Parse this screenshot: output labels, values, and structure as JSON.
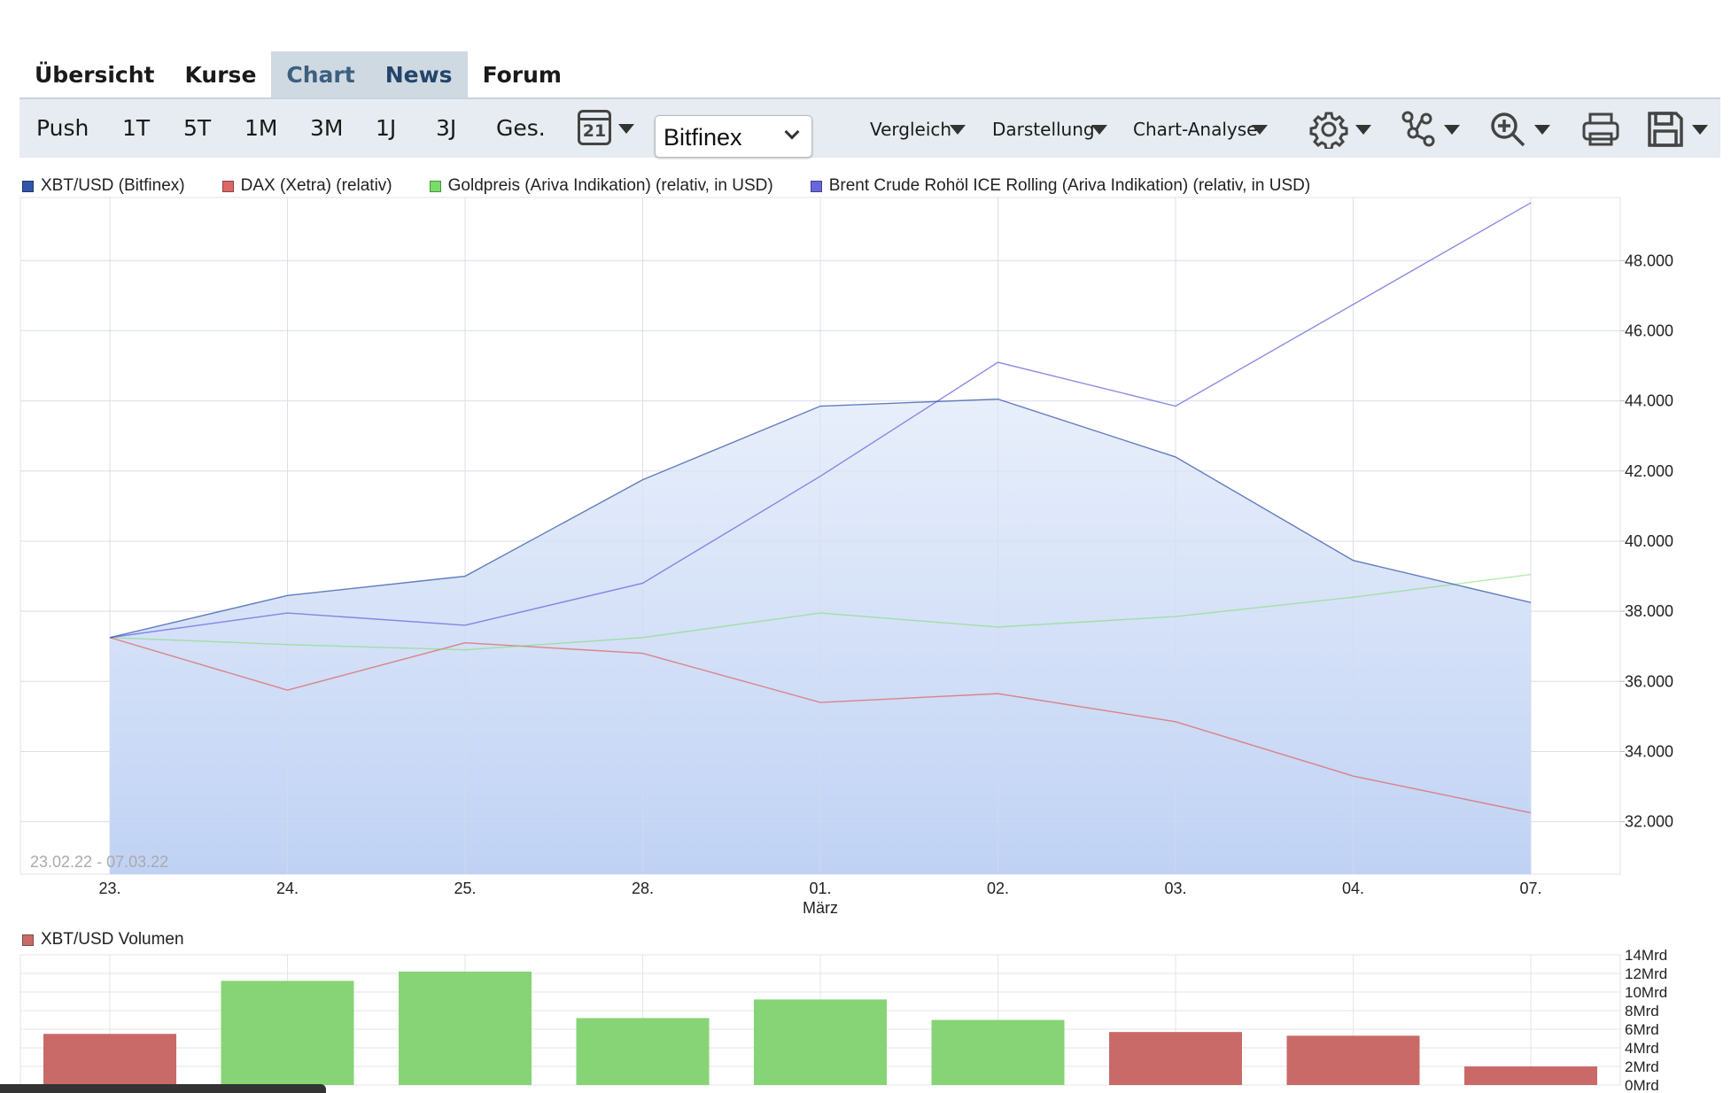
{
  "nav": {
    "tabs": [
      {
        "label": "Übersicht"
      },
      {
        "label": "Kurse"
      },
      {
        "label": "Chart"
      },
      {
        "label": "News"
      },
      {
        "label": "Forum"
      }
    ]
  },
  "toolbar": {
    "periods": [
      "Push",
      "1T",
      "5T",
      "1M",
      "3M",
      "1J",
      "3J",
      "Ges."
    ],
    "calendar_day": "21",
    "exchange_select": "Bitfinex",
    "dropdowns": [
      "Vergleich",
      "Darstellung",
      "Chart-Analyse"
    ]
  },
  "colors": {
    "xbt": "#3355aa",
    "dax": "#dd6666",
    "gold": "#77dd66",
    "brent": "#6666dd",
    "area_top": "#e8effb",
    "area_bottom": "#c0d2f4",
    "vol_up": "#86d476",
    "vol_down": "#c96a68"
  },
  "chart_data": [
    {
      "type": "line",
      "legend": [
        "XBT/USD (Bitfinex)",
        "DAX (Xetra) (relativ)",
        "Goldpreis (Ariva Indikation) (relativ, in USD)",
        "Brent Crude Rohöl ICE Rolling (Ariva Indikation) (relativ, in USD)"
      ],
      "categories": [
        "23.",
        "24.",
        "25.",
        "28.",
        "01.",
        "02.",
        "03.",
        "04.",
        "07."
      ],
      "month_label": "März",
      "y_ticks": [
        32000,
        34000,
        36000,
        38000,
        40000,
        42000,
        44000,
        46000,
        48000
      ],
      "y_tick_labels": [
        "32.000",
        "34.000",
        "36.000",
        "38.000",
        "40.000",
        "42.000",
        "44.000",
        "46.000",
        "48.000"
      ],
      "ylim": [
        30500,
        49800
      ],
      "date_range": "23.02.22 - 07.03.22",
      "grid": true,
      "series": [
        {
          "name": "XBT/USD (Bitfinex)",
          "style": "area",
          "values": [
            37250,
            38450,
            39000,
            41750,
            43850,
            44050,
            42400,
            39450,
            38250
          ]
        },
        {
          "name": "DAX (Xetra) (relativ)",
          "values": [
            37250,
            35750,
            37100,
            36800,
            35400,
            35650,
            34850,
            33300,
            32250
          ]
        },
        {
          "name": "Goldpreis (Ariva Indikation) (relativ, in USD)",
          "values": [
            37250,
            37050,
            36900,
            37250,
            37950,
            37550,
            37850,
            38400,
            39050
          ]
        },
        {
          "name": "Brent Crude Rohöl ICE Rolling (Ariva Indikation) (relativ, in USD)",
          "values": [
            37250,
            37950,
            37600,
            38800,
            41850,
            45100,
            43850,
            46750,
            49650
          ]
        }
      ]
    },
    {
      "type": "bar",
      "legend": [
        "XBT/USD Volumen"
      ],
      "categories": [
        "23.",
        "24.",
        "25.",
        "28.",
        "01.",
        "02.",
        "03.",
        "04.",
        "07."
      ],
      "values": [
        5.5,
        11.2,
        12.2,
        7.2,
        9.2,
        7.0,
        5.7,
        5.3,
        2.0
      ],
      "direction": [
        "down",
        "up",
        "up",
        "up",
        "up",
        "up",
        "down",
        "down",
        "down"
      ],
      "y_ticks": [
        0,
        2,
        4,
        6,
        8,
        10,
        12,
        14
      ],
      "y_tick_labels": [
        "0Mrd",
        "2Mrd",
        "4Mrd",
        "6Mrd",
        "8Mrd",
        "10Mrd",
        "12Mrd",
        "14Mrd"
      ],
      "ylim": [
        0,
        14
      ]
    }
  ]
}
